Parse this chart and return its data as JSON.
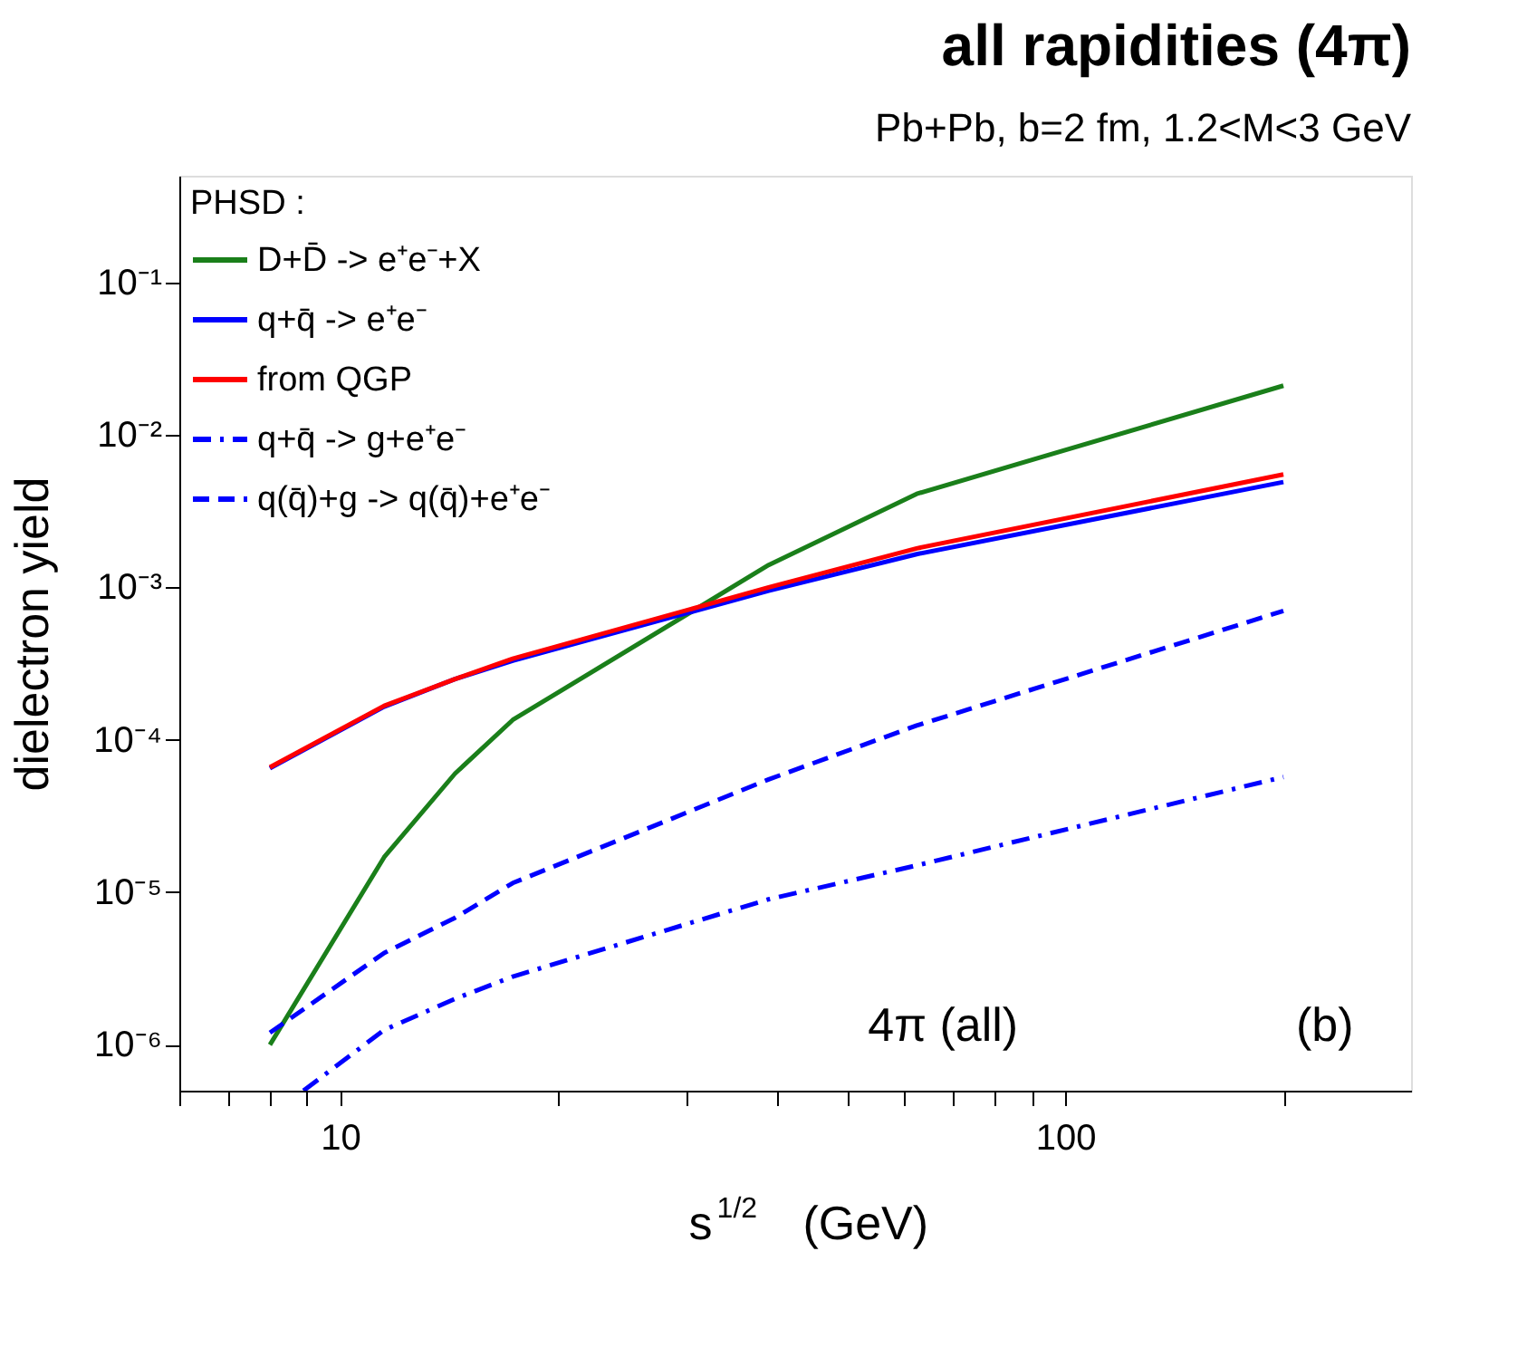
{
  "chart_data": {
    "type": "line",
    "title": "all rapidities (4π)",
    "subtitle": "Pb+Pb, b=2 fm, 1.2<M<3 GeV",
    "xlabel": "s$^{1/2}$ (GeV)",
    "ylabel": "dielectron yield",
    "legend_title": "PHSD :",
    "log": "xy",
    "grid": false,
    "legend": "top left",
    "xlim": [
      6,
      300
    ],
    "ylim": [
      5e-07,
      0.5
    ],
    "xticks": [
      {
        "value": 6,
        "label": null
      },
      {
        "value": 7,
        "label": null
      },
      {
        "value": 8,
        "label": null
      },
      {
        "value": 9,
        "label": null
      },
      10,
      {
        "value": 20,
        "label": null
      },
      {
        "value": 30,
        "label": null
      },
      {
        "value": 40,
        "label": null
      },
      {
        "value": 50,
        "label": null
      },
      {
        "value": 60,
        "label": null
      },
      {
        "value": 70,
        "label": null
      },
      {
        "value": 80,
        "label": null
      },
      {
        "value": 90,
        "label": null
      },
      100,
      {
        "value": 200,
        "label": null
      }
    ],
    "yticks": [
      {
        "value": 1e-06,
        "label": "10⁻⁶"
      },
      {
        "value": 1e-05,
        "label": "10⁻⁵"
      },
      {
        "value": 0.0001,
        "label": "10⁻⁴"
      },
      {
        "value": 0.001,
        "label": "10⁻³"
      },
      {
        "value": 0.01,
        "label": "10⁻²"
      },
      {
        "value": 0.1,
        "label": "10⁻¹"
      }
    ],
    "x": [
      8,
      11.5,
      14.4,
      17.3,
      39,
      62.4,
      200
    ],
    "series": [
      {
        "name": "D+D̄ -> e⁺e⁻+X",
        "color": "#1a7f1a",
        "line_style": "solid",
        "values": [
          1e-06,
          1.7e-05,
          6e-05,
          0.000135,
          0.0014,
          0.0041,
          0.021
        ]
      },
      {
        "name": "q+q̄ -> e⁺e⁻",
        "color": "#0000ff",
        "line_style": "solid",
        "values": [
          6.5e-05,
          0.000165,
          0.00025,
          0.00033,
          0.00095,
          0.00165,
          0.0049
        ]
      },
      {
        "name": "from QGP",
        "color": "#ff0000",
        "line_style": "solid",
        "values": [
          6.6e-05,
          0.000167,
          0.00025,
          0.00034,
          0.001,
          0.0018,
          0.0055
        ]
      },
      {
        "name": "q+q̄ -> g+e⁺e⁻",
        "color": "#0000ff",
        "line_style": "dashdot",
        "x": [
          8.9,
          11.5,
          14.4,
          17.3,
          39,
          62.4,
          200
        ],
        "values": [
          5e-07,
          1.25e-06,
          2e-06,
          2.8e-06,
          9e-06,
          1.5e-05,
          5.7e-05
        ]
      },
      {
        "name": "q(q̄)+g -> q(q̄)+e⁺e⁻",
        "color": "#0000ff",
        "line_style": "dashed",
        "values": [
          1.2e-06,
          4e-06,
          6.8e-06,
          1.15e-05,
          5.5e-05,
          0.000124,
          0.0007
        ]
      }
    ],
    "annotations": [
      "4π (all)",
      "(b)"
    ]
  }
}
